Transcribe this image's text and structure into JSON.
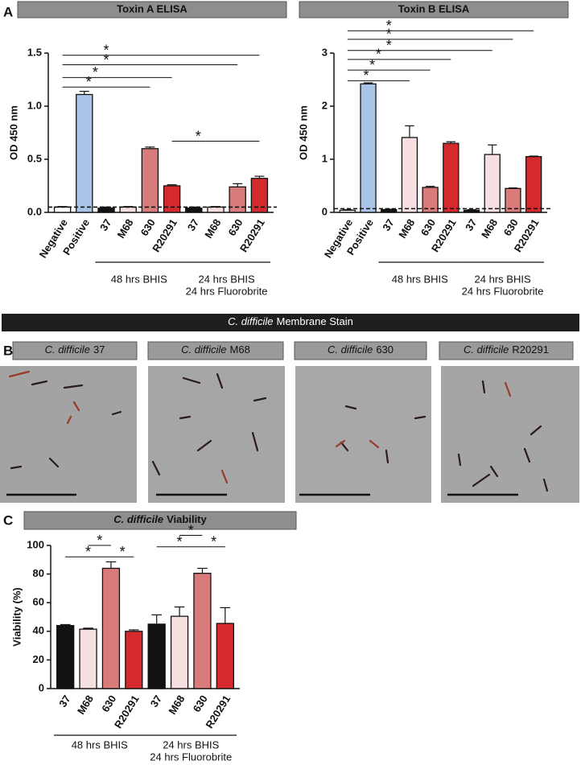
{
  "panel_labels": [
    "A",
    "B",
    "C"
  ],
  "membrane_stain": {
    "banner": {
      "italic": "C. difficile",
      "text": "Membrane Stain"
    },
    "images": [
      {
        "italic": "C. difficile",
        "text": "37"
      },
      {
        "italic": "C. difficile",
        "text": "M68"
      },
      {
        "italic": "C. difficile",
        "text": "630"
      },
      {
        "italic": "C. difficile",
        "text": "R20291"
      }
    ]
  },
  "chart_data": [
    {
      "type": "bar",
      "title": "Toxin A ELISA",
      "ylabel": "OD 450 nm",
      "categories": [
        "Negative",
        "Positive",
        "37",
        "M68",
        "630",
        "R20291",
        "37",
        "M68",
        "630",
        "R20291"
      ],
      "values": [
        0.05,
        1.11,
        0.04,
        0.05,
        0.6,
        0.25,
        0.04,
        0.05,
        0.24,
        0.32
      ],
      "errors": [
        0.005,
        0.03,
        0.01,
        0.005,
        0.015,
        0.01,
        0.01,
        0.005,
        0.03,
        0.02
      ],
      "colors": [
        "#ffffff",
        "#a9c4e8",
        "#111111",
        "#f6dfe0",
        "#da7b7b",
        "#d42a2e",
        "#111111",
        "#f6dfe0",
        "#da7b7b",
        "#d42a2e"
      ],
      "ylim": [
        0,
        1.5
      ],
      "yticks": [
        {
          "value": 0,
          "label": "0.0"
        },
        0.5,
        {
          "value": 1,
          "label": "1.0"
        },
        1.5
      ],
      "reference_line": 0.05,
      "star_anchor": "left",
      "groups": [
        {
          "label": [
            "48 hrs BHIS"
          ],
          "from": 2,
          "to": 5
        },
        {
          "label": [
            "24 hrs BHIS",
            "24 hrs Fluorobrite"
          ],
          "from": 6,
          "to": 9
        }
      ],
      "annotations": [
        {
          "text": "*",
          "from": 0,
          "to": 9,
          "y": 1.48
        },
        {
          "text": "*",
          "from": 0,
          "to": 8,
          "y": 1.39
        },
        {
          "text": "*",
          "from": 0,
          "to": 5,
          "y": 1.27
        },
        {
          "text": "*",
          "from": 0,
          "to": 4,
          "y": 1.18
        },
        {
          "text": "*",
          "from": 5,
          "to": 9,
          "y": 0.67
        }
      ]
    },
    {
      "type": "bar",
      "title": "Toxin B ELISA",
      "ylabel": "OD 450 nm",
      "categories": [
        "Negative",
        "Positive",
        "37",
        "M68",
        "630",
        "R20291",
        "37",
        "M68",
        "630",
        "R20291"
      ],
      "values": [
        0.04,
        2.42,
        0.05,
        1.41,
        0.47,
        1.3,
        0.04,
        1.09,
        0.45,
        1.05
      ],
      "errors": [
        0.01,
        0.02,
        0.01,
        0.22,
        0.02,
        0.03,
        0.01,
        0.18,
        0.01,
        0.01
      ],
      "colors": [
        "#ffffff",
        "#a9c4e8",
        "#111111",
        "#f6dfe0",
        "#da7b7b",
        "#d42a2e",
        "#111111",
        "#f6dfe0",
        "#da7b7b",
        "#d42a2e"
      ],
      "ylim": [
        0,
        3
      ],
      "yticks": [
        0,
        1,
        2,
        3
      ],
      "reference_line": 0.07,
      "star_anchor": "left",
      "groups": [
        {
          "label": [
            "48 hrs BHIS"
          ],
          "from": 2,
          "to": 5
        },
        {
          "label": [
            "24 hrs BHIS",
            "24 hrs Fluorobrite"
          ],
          "from": 6,
          "to": 9
        }
      ],
      "annotations": [
        {
          "text": "*",
          "from": 0,
          "to": 9,
          "y": 3.42
        },
        {
          "text": "*",
          "from": 0,
          "to": 8,
          "y": 3.26
        },
        {
          "text": "*",
          "from": 0,
          "to": 7,
          "y": 3.05
        },
        {
          "text": "*",
          "from": 0,
          "to": 5,
          "y": 2.88
        },
        {
          "text": "*",
          "from": 0,
          "to": 4,
          "y": 2.68
        },
        {
          "text": "*",
          "from": 0,
          "to": 3,
          "y": 2.48
        }
      ]
    },
    {
      "type": "bar",
      "title": {
        "italic": "C. difficile",
        "text": "Viability"
      },
      "ylabel": "Viability (%)",
      "categories": [
        "37",
        "M68",
        "630",
        "R20291",
        "37",
        "M68",
        "630",
        "R20291"
      ],
      "values": [
        44,
        41.5,
        84,
        40,
        45,
        50.5,
        80.5,
        45.5
      ],
      "errors": [
        0.7,
        0.7,
        4.5,
        1,
        6.5,
        6.5,
        3.5,
        11
      ],
      "colors": [
        "#111111",
        "#f6dfe0",
        "#da7b7b",
        "#d42a2e",
        "#111111",
        "#f6dfe0",
        "#da7b7b",
        "#d42a2e"
      ],
      "ylim": [
        0,
        100
      ],
      "yticks": [
        0,
        20,
        40,
        60,
        80,
        100
      ],
      "star_anchor": "center",
      "groups": [
        {
          "label": [
            "48 hrs BHIS"
          ],
          "from": 0,
          "to": 3
        },
        {
          "label": [
            "24 hrs BHIS",
            "24 hrs Fluorobrite"
          ],
          "from": 4,
          "to": 7
        }
      ],
      "annotations": [
        {
          "text": "*",
          "from": 1,
          "to": 2,
          "y": 100
        },
        {
          "text": "*",
          "from": 0,
          "to": 2,
          "y": 92
        },
        {
          "text": "*",
          "from": 2,
          "to": 3,
          "y": 92
        },
        {
          "text": "*",
          "from": 5,
          "to": 6,
          "y": 107
        },
        {
          "text": "*",
          "from": 4,
          "to": 6,
          "y": 99
        },
        {
          "text": "*",
          "from": 6,
          "to": 7,
          "y": 99
        }
      ]
    }
  ]
}
